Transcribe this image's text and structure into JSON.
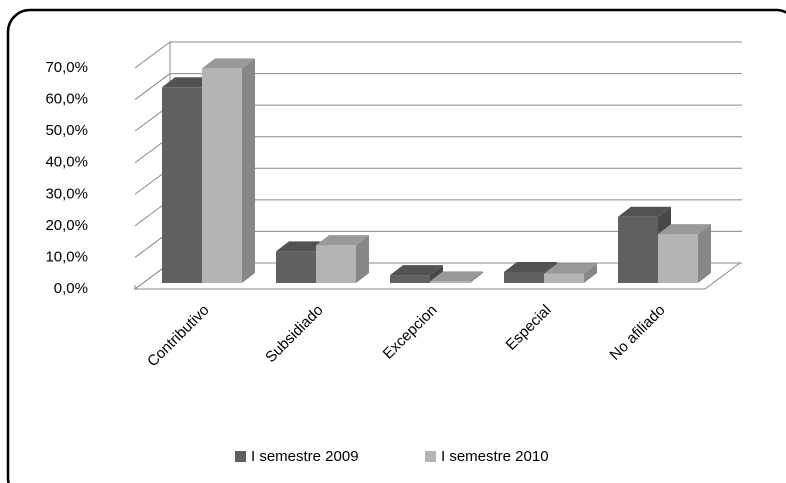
{
  "chart_data": {
    "type": "bar3d",
    "categories": [
      "Contributivo",
      "Subsidiado",
      "Excepcion",
      "Especial",
      "No afiliado"
    ],
    "series": [
      {
        "name": "I semestre 2009",
        "color": "#606060",
        "values": [
          62,
          10,
          2.5,
          3.5,
          21
        ]
      },
      {
        "name": "I semestre 2010",
        "color": "#b4b4b4",
        "values": [
          68,
          12,
          0.5,
          3,
          15.5
        ]
      }
    ],
    "ylim": [
      0,
      70
    ],
    "yticks": [
      {
        "value": 0,
        "label": "0,0%"
      },
      {
        "value": 10,
        "label": "10,0%"
      },
      {
        "value": 20,
        "label": "20,0%"
      },
      {
        "value": 30,
        "label": "30,0%"
      },
      {
        "value": 40,
        "label": "40,0%"
      },
      {
        "value": 50,
        "label": "50,0%"
      },
      {
        "value": 60,
        "label": "60,0%"
      },
      {
        "value": 70,
        "label": "70,0%"
      }
    ],
    "grid": true,
    "legend": "bottom"
  }
}
